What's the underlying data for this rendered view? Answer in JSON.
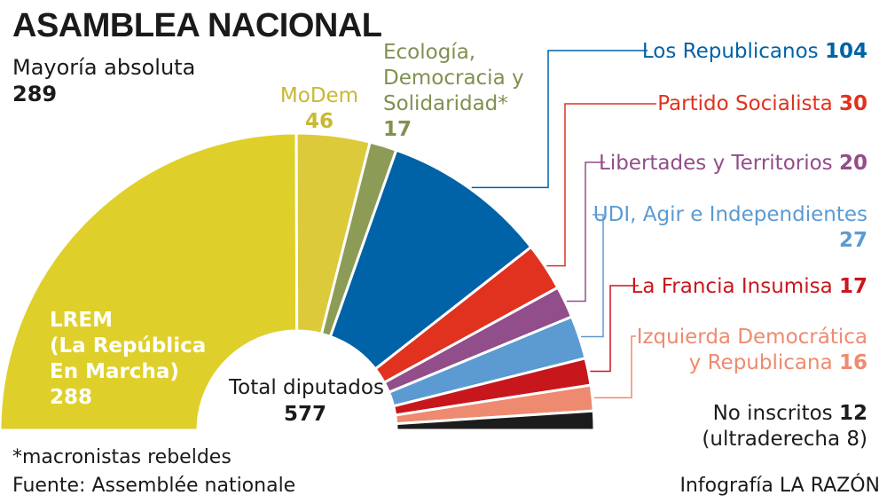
{
  "title": "ASAMBLEA NACIONAL",
  "majority": {
    "label": "Mayoría absoluta",
    "value": "289"
  },
  "total": {
    "label": "Total diputados",
    "value": "577"
  },
  "footnote": "*macronistas rebeldes",
  "source": "Fuente: Assemblée nationale",
  "credit": "Infografía LA RAZÓN",
  "chart_data": {
    "type": "pie",
    "shape": "half-donut (hemicycle)",
    "total": 577,
    "series": [
      {
        "key": "lrem",
        "name_lines": [
          "LREM",
          "(La República",
          "En Marcha)"
        ],
        "value": 288,
        "value_text": "288",
        "color": "#dfcf2a"
      },
      {
        "key": "modem",
        "name_lines": [
          "MoDem"
        ],
        "value": 46,
        "value_text": "46",
        "color": "#dcca3a"
      },
      {
        "key": "eds",
        "name_lines": [
          "Ecología,",
          "Democracia y",
          "Solidaridad*"
        ],
        "value": 17,
        "value_text": "17",
        "color": "#8c9c56"
      },
      {
        "key": "lr",
        "name": "Los Republicanos",
        "value": 104,
        "value_text": "104",
        "color": "#0062a7",
        "text_color": "#0062a7"
      },
      {
        "key": "ps",
        "name": "Partido Socialista",
        "value": 30,
        "value_text": "30",
        "color": "#e0321e",
        "text_color": "#e0321e"
      },
      {
        "key": "lt",
        "name": "Libertades y Territorios",
        "value": 20,
        "value_text": "20",
        "color": "#924d8b",
        "text_color": "#924d8b"
      },
      {
        "key": "udi",
        "name": "UDI, Agir e Independientes",
        "value": 27,
        "value_text": "27",
        "color": "#5b9bd2",
        "text_color": "#5b9bd2"
      },
      {
        "key": "lfi",
        "name": "La Francia Insumisa",
        "value": 17,
        "value_text": "17",
        "color": "#c7171d",
        "text_color": "#c7171d"
      },
      {
        "key": "idr",
        "name_lines": [
          "Izquierda Democrática",
          "y Republicana"
        ],
        "value": 16,
        "value_text": "16",
        "color": "#ee8a6f",
        "text_color": "#ee8a6f"
      },
      {
        "key": "ni",
        "name": "No inscritos",
        "value": 12,
        "value_text": "12",
        "note": "(ultraderecha 8)",
        "color": "#1c1c1c",
        "text_color": "#1c1c1c"
      }
    ]
  }
}
